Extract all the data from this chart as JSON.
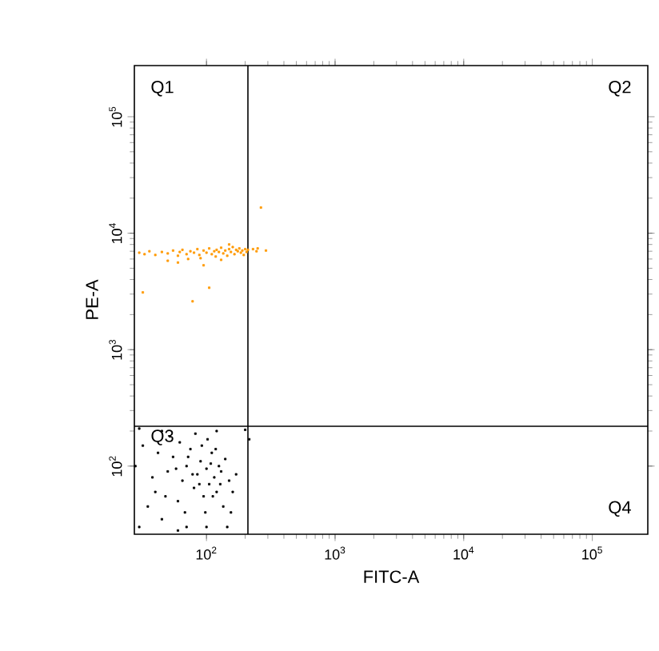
{
  "chart_data": {
    "type": "scatter",
    "xlabel": "FITC-A",
    "ylabel": "PE-A",
    "log": "xy",
    "marker": "square",
    "xlim": [
      27.5,
      270000
    ],
    "ylim": [
      26,
      275000
    ],
    "xticks": [
      {
        "value": 100,
        "label": "10$^{2}$"
      },
      {
        "value": 1000,
        "label": "10$^{3}$"
      },
      {
        "value": 10000,
        "label": "10$^{4}$"
      },
      {
        "value": 100000,
        "label": "10$^{5}$"
      }
    ],
    "yticks": [
      {
        "value": 100,
        "label": "10$^{2}$"
      },
      {
        "value": 1000,
        "label": "10$^{3}$"
      },
      {
        "value": 10000,
        "label": "10$^{4}$"
      },
      {
        "value": 100000,
        "label": "10$^{5}$"
      }
    ],
    "ref_lines": [
      {
        "axis": "x",
        "value": 210,
        "color": "#000000"
      },
      {
        "axis": "y",
        "value": 220,
        "color": "#000000"
      }
    ],
    "annotations": [
      "Q1",
      "Q2",
      "Q3",
      "Q4"
    ],
    "series": [
      {
        "color": "#ff9900",
        "x": [
          30,
          33,
          36,
          40,
          45,
          50,
          55,
          60,
          62,
          65,
          70,
          72,
          75,
          80,
          85,
          88,
          90,
          95,
          100,
          105,
          110,
          115,
          118,
          120,
          125,
          130,
          135,
          140,
          145,
          150,
          155,
          160,
          165,
          170,
          175,
          180,
          185,
          190,
          195,
          200,
          205,
          210,
          230,
          245,
          265,
          32,
          78,
          105,
          60,
          95,
          150,
          130,
          50,
          290,
          250
        ],
        "values": [
          6800,
          6600,
          7000,
          6500,
          6900,
          6700,
          7100,
          6400,
          6900,
          7200,
          6600,
          6000,
          7000,
          6800,
          7300,
          6500,
          6100,
          7100,
          6800,
          7400,
          6600,
          7000,
          6300,
          7200,
          6900,
          7500,
          6700,
          7100,
          6400,
          7300,
          6900,
          7600,
          6600,
          7200,
          7000,
          7400,
          6800,
          7100,
          6500,
          7300,
          6900,
          7200,
          7300,
          7000,
          16600,
          3100,
          2600,
          3400,
          5600,
          5300,
          8000,
          5900,
          5800,
          7100,
          7400
        ]
      },
      {
        "color": "#000000",
        "x": [
          30,
          35,
          40,
          45,
          50,
          55,
          60,
          65,
          70,
          75,
          80,
          85,
          90,
          95,
          100,
          105,
          110,
          115,
          120,
          125,
          130,
          135,
          140,
          150,
          160,
          28,
          32,
          38,
          42,
          48,
          52,
          58,
          62,
          68,
          72,
          78,
          82,
          88,
          92,
          98,
          102,
          108,
          112,
          118,
          128,
          145,
          155,
          170,
          200,
          215,
          30,
          100,
          70,
          45,
          120,
          60
        ],
        "values": [
          30,
          45,
          60,
          35,
          90,
          120,
          50,
          75,
          100,
          140,
          65,
          85,
          110,
          55,
          95,
          70,
          130,
          80,
          60,
          100,
          90,
          45,
          115,
          75,
          60,
          100,
          150,
          80,
          130,
          55,
          180,
          95,
          160,
          40,
          120,
          85,
          190,
          70,
          150,
          40,
          170,
          105,
          55,
          140,
          70,
          30,
          40,
          85,
          205,
          170,
          210,
          30,
          30,
          200,
          200,
          28
        ]
      }
    ]
  }
}
